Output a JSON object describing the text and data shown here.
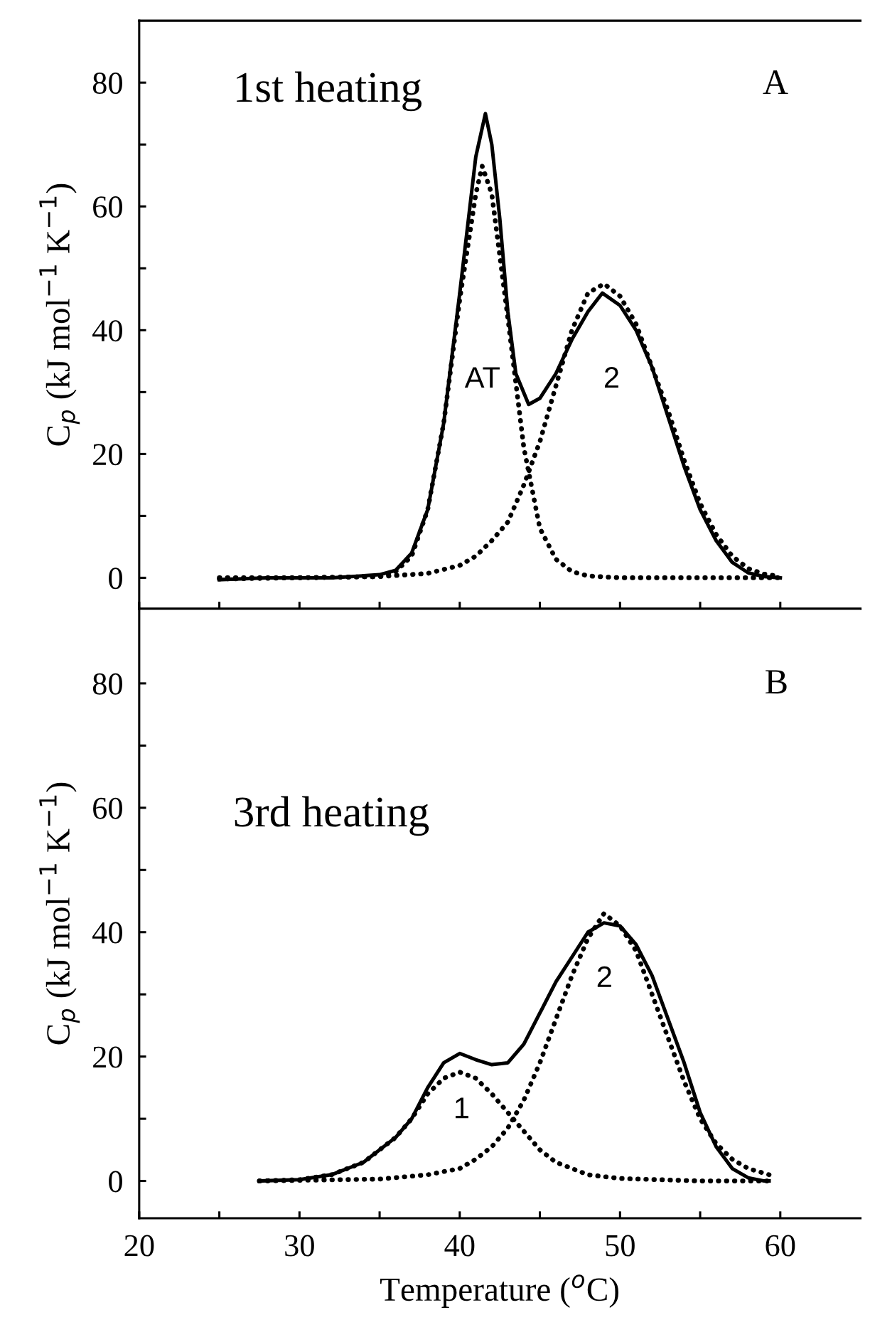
{
  "chart_data": [
    {
      "type": "line",
      "ylabel": "C$_{p}$ (kJ mol$^{−1}$ K$^{−1}$)",
      "xlim": [
        20,
        65
      ],
      "ylim": [
        -5,
        90
      ],
      "xticks": [
        20,
        {
          "value": 25,
          "label": null
        },
        30,
        {
          "value": 35,
          "label": null
        },
        40,
        {
          "value": 45,
          "label": null
        },
        50,
        {
          "value": 55,
          "label": null
        },
        60
      ],
      "yticks": [
        0,
        {
          "value": 10,
          "label": null
        },
        20,
        {
          "value": 30,
          "label": null
        },
        40,
        {
          "value": 50,
          "label": null
        },
        60,
        {
          "value": 70,
          "label": null
        },
        80
      ],
      "tick_labels": "y",
      "grid": false,
      "legend": false,
      "marker": "none",
      "annotations": [
        "1st heating",
        "A",
        "AT",
        "2"
      ],
      "series": [
        {
          "color": "#000000",
          "line_style": "solid",
          "x": [
            25,
            28,
            32,
            35,
            36,
            37,
            38,
            39,
            40,
            40.5,
            41,
            41.6,
            42,
            42.5,
            43,
            43.5,
            44.3,
            45,
            46,
            47,
            48,
            48.9,
            50,
            51,
            52,
            53,
            54,
            55,
            56,
            57,
            58,
            59,
            60
          ],
          "values": [
            -0.3,
            0,
            0,
            0.5,
            1.2,
            4,
            11,
            25,
            46,
            57,
            68,
            75,
            70,
            58,
            43,
            33,
            28,
            29,
            33,
            38.5,
            43,
            46,
            44,
            40,
            34,
            26,
            18,
            11,
            6,
            2.5,
            0.8,
            0.2,
            0
          ]
        },
        {
          "color": "#000000",
          "line_style": "dotted",
          "x": [
            25,
            30,
            35,
            36,
            37,
            38,
            39,
            40,
            41,
            41.4,
            42,
            43,
            44,
            45,
            46,
            47,
            48,
            50,
            55,
            60
          ],
          "values": [
            -0.2,
            0,
            0.2,
            1,
            3.5,
            11,
            25,
            45,
            62,
            66.5,
            62,
            42,
            21,
            8,
            3,
            1,
            0.3,
            0,
            0,
            0
          ]
        },
        {
          "color": "#000000",
          "line_style": "dotted",
          "x": [
            25,
            30,
            35,
            38,
            40,
            41,
            42,
            43,
            44,
            45,
            46,
            47,
            48,
            49,
            50,
            51,
            52,
            53,
            54,
            55,
            56,
            57,
            58,
            59,
            60
          ],
          "values": [
            0,
            0,
            0.2,
            0.7,
            2,
            3.5,
            6,
            9,
            15,
            22,
            31,
            40,
            46,
            47.5,
            45.5,
            41,
            34,
            27,
            19,
            12,
            7,
            3.5,
            1.5,
            0.6,
            0.2
          ]
        }
      ]
    },
    {
      "type": "line",
      "xlabel": "Temperature ($^{o}$C)",
      "ylabel": "C$_{p}$ (kJ mol$^{−1}$ K$^{−1}$)",
      "xlim": [
        20,
        65
      ],
      "ylim": [
        -6,
        92
      ],
      "xticks": [
        20,
        {
          "value": 25,
          "label": null
        },
        30,
        {
          "value": 35,
          "label": null
        },
        40,
        {
          "value": 45,
          "label": null
        },
        50,
        {
          "value": 55,
          "label": null
        },
        60
      ],
      "yticks": [
        0,
        {
          "value": 10,
          "label": null
        },
        20,
        {
          "value": 30,
          "label": null
        },
        40,
        {
          "value": 50,
          "label": null
        },
        60,
        {
          "value": 70,
          "label": null
        },
        80
      ],
      "grid": false,
      "legend": false,
      "marker": "none",
      "annotations": [
        "3rd heating",
        "B",
        "1",
        "2"
      ],
      "series": [
        {
          "color": "#000000",
          "line_style": "solid",
          "x": [
            27.5,
            30,
            32,
            34,
            36,
            37,
            38,
            39,
            40,
            41,
            42,
            43,
            44,
            45,
            46,
            47,
            48,
            49,
            50,
            51,
            52,
            53,
            54,
            55,
            56,
            57,
            58,
            59,
            59.3
          ],
          "values": [
            0,
            0.2,
            1,
            3,
            7,
            10,
            15,
            19,
            20.5,
            19.5,
            18.7,
            19,
            22,
            27,
            32,
            36,
            40,
            41.5,
            41,
            38,
            33,
            26,
            19,
            11,
            5.5,
            2,
            0.5,
            0,
            0
          ]
        },
        {
          "color": "#000000",
          "line_style": "dotted",
          "x": [
            27.5,
            30,
            32,
            34,
            36,
            37,
            38,
            39,
            40,
            41,
            42,
            43,
            44,
            45,
            46,
            47,
            48,
            50,
            55,
            59.3
          ],
          "values": [
            0,
            0.2,
            1,
            3,
            7,
            10,
            14,
            16.5,
            17.5,
            16.5,
            14,
            11,
            8,
            5,
            3,
            2,
            1,
            0.4,
            0,
            0
          ]
        },
        {
          "color": "#000000",
          "line_style": "dotted",
          "x": [
            27.5,
            35,
            38,
            40,
            41,
            42,
            43,
            44,
            45,
            46,
            47,
            48,
            49,
            50,
            51,
            52,
            53,
            54,
            55,
            56,
            57,
            58,
            59.3
          ],
          "values": [
            0,
            0.3,
            1,
            2,
            3.5,
            5.5,
            8.5,
            13,
            19,
            26,
            33,
            39,
            43,
            41,
            37,
            30,
            23,
            16,
            10,
            6,
            3.5,
            2,
            1
          ]
        }
      ]
    }
  ]
}
